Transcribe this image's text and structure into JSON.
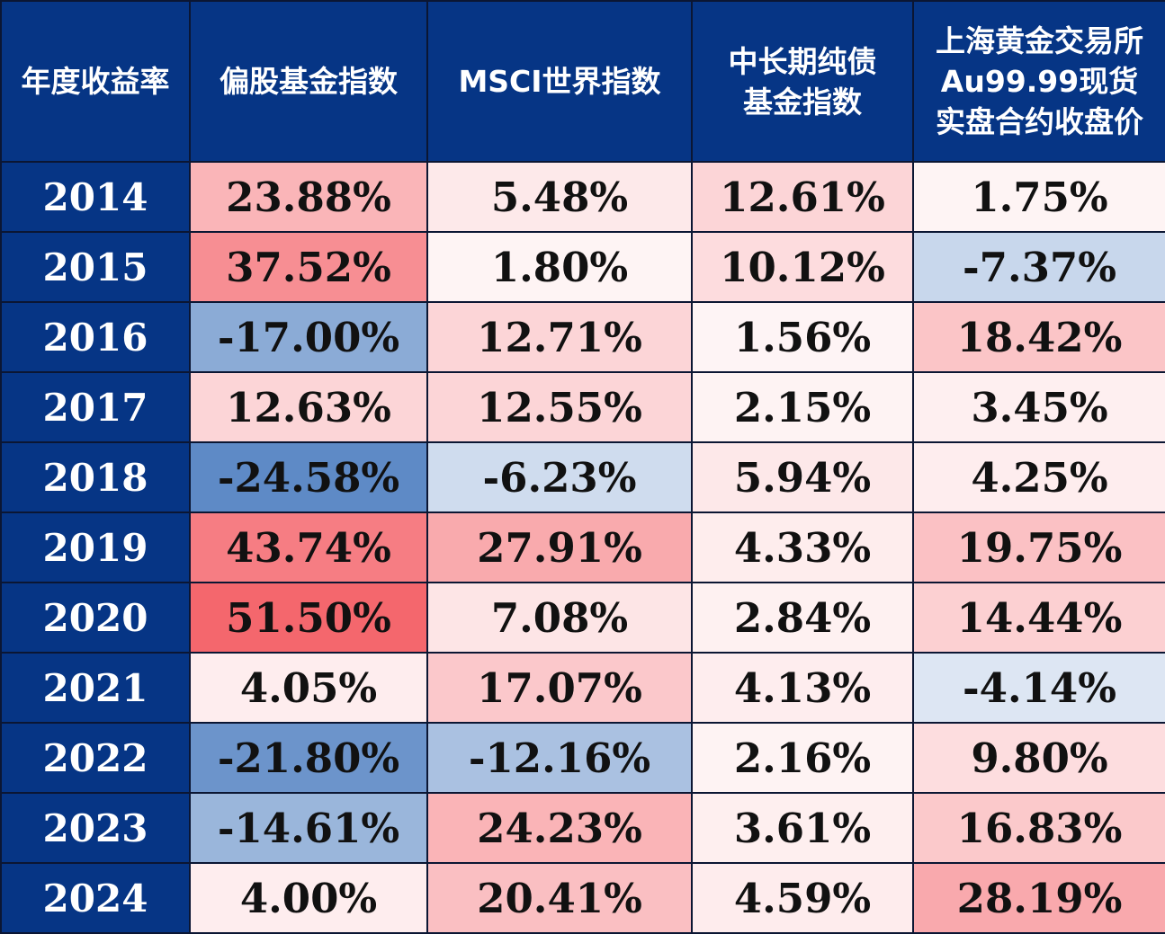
{
  "chart_data": {
    "type": "heatmap",
    "corner_label": "年度收益率",
    "columns": [
      {
        "label_lines": [
          "偏股基金指数"
        ]
      },
      {
        "label_lines": [
          "MSCI世界指数"
        ]
      },
      {
        "label_lines": [
          "中长期纯债",
          "基金指数"
        ]
      },
      {
        "label_lines": [
          "上海黄金交易所",
          "Au99.99现货",
          "实盘合约收盘价"
        ]
      }
    ],
    "rows": [
      {
        "year": "2014",
        "cells": [
          {
            "text": "23.88%",
            "value": 23.88
          },
          {
            "text": "5.48%",
            "value": 5.48
          },
          {
            "text": "12.61%",
            "value": 12.61
          },
          {
            "text": "1.75%",
            "value": 1.75
          }
        ]
      },
      {
        "year": "2015",
        "cells": [
          {
            "text": "37.52%",
            "value": 37.52
          },
          {
            "text": "1.80%",
            "value": 1.8
          },
          {
            "text": "10.12%",
            "value": 10.12
          },
          {
            "text": "-7.37%",
            "value": -7.37
          }
        ]
      },
      {
        "year": "2016",
        "cells": [
          {
            "text": "-17.00%",
            "value": -17.0
          },
          {
            "text": "12.71%",
            "value": 12.71
          },
          {
            "text": "1.56%",
            "value": 1.56
          },
          {
            "text": "18.42%",
            "value": 18.42
          }
        ]
      },
      {
        "year": "2017",
        "cells": [
          {
            "text": "12.63%",
            "value": 12.63
          },
          {
            "text": "12.55%",
            "value": 12.55
          },
          {
            "text": "2.15%",
            "value": 2.15
          },
          {
            "text": "3.45%",
            "value": 3.45
          }
        ]
      },
      {
        "year": "2018",
        "cells": [
          {
            "text": "-24.58%",
            "value": -24.58
          },
          {
            "text": "-6.23%",
            "value": -6.23
          },
          {
            "text": "5.94%",
            "value": 5.94
          },
          {
            "text": "4.25%",
            "value": 4.25
          }
        ]
      },
      {
        "year": "2019",
        "cells": [
          {
            "text": "43.74%",
            "value": 43.74
          },
          {
            "text": "27.91%",
            "value": 27.91
          },
          {
            "text": "4.33%",
            "value": 4.33
          },
          {
            "text": "19.75%",
            "value": 19.75
          }
        ]
      },
      {
        "year": "2020",
        "cells": [
          {
            "text": "51.50%",
            "value": 51.5
          },
          {
            "text": "7.08%",
            "value": 7.08
          },
          {
            "text": "2.84%",
            "value": 2.84
          },
          {
            "text": "14.44%",
            "value": 14.44
          }
        ]
      },
      {
        "year": "2021",
        "cells": [
          {
            "text": "4.05%",
            "value": 4.05
          },
          {
            "text": "17.07%",
            "value": 17.07
          },
          {
            "text": "4.13%",
            "value": 4.13
          },
          {
            "text": "-4.14%",
            "value": -4.14
          }
        ]
      },
      {
        "year": "2022",
        "cells": [
          {
            "text": "-21.80%",
            "value": -21.8
          },
          {
            "text": "-12.16%",
            "value": -12.16
          },
          {
            "text": "2.16%",
            "value": 2.16
          },
          {
            "text": "9.80%",
            "value": 9.8
          }
        ]
      },
      {
        "year": "2023",
        "cells": [
          {
            "text": "-14.61%",
            "value": -14.61
          },
          {
            "text": "24.23%",
            "value": 24.23
          },
          {
            "text": "3.61%",
            "value": 3.61
          },
          {
            "text": "16.83%",
            "value": 16.83
          }
        ]
      },
      {
        "year": "2024",
        "cells": [
          {
            "text": "4.00%",
            "value": 4.0
          },
          {
            "text": "20.41%",
            "value": 20.41
          },
          {
            "text": "4.59%",
            "value": 4.59
          },
          {
            "text": "28.19%",
            "value": 28.19
          }
        ]
      }
    ],
    "colors": {
      "header_bg": "#063585",
      "header_text": "#ffffff",
      "cell_text": "#111111",
      "negative_max": "#5e8ac6",
      "neutral": "#ffffff",
      "positive_max": "#f4656c"
    }
  }
}
